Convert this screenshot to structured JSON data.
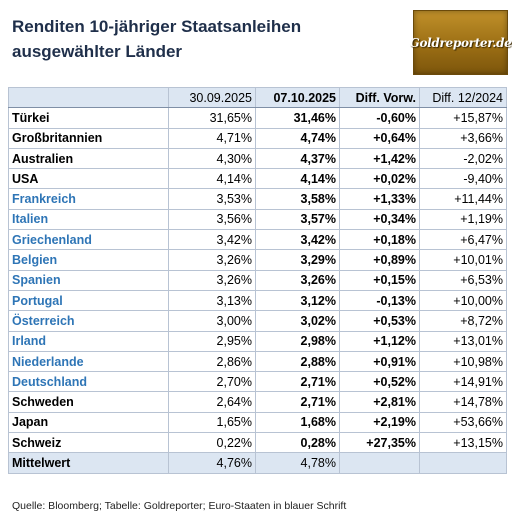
{
  "title_line1": "Renditen 10-jähriger Staatsanleihen",
  "title_line2": "ausgewählter Länder",
  "logo_text": "Goldreporter.de",
  "headers": {
    "col_date1": "30.09.2025",
    "col_date2": "07.10.2025",
    "col_diff_prev": "Diff. Vorw.",
    "col_diff_year": "Diff. 12/2024"
  },
  "rows": [
    {
      "country": "Türkei",
      "euro": false,
      "v1": "31,65%",
      "v2": "31,46%",
      "dprev": "-0,60%",
      "dyear": "+15,87%"
    },
    {
      "country": "Großbritannien",
      "euro": false,
      "v1": "4,71%",
      "v2": "4,74%",
      "dprev": "+0,64%",
      "dyear": "+3,66%"
    },
    {
      "country": "Australien",
      "euro": false,
      "v1": "4,30%",
      "v2": "4,37%",
      "dprev": "+1,42%",
      "dyear": "-2,02%"
    },
    {
      "country": "USA",
      "euro": false,
      "v1": "4,14%",
      "v2": "4,14%",
      "dprev": "+0,02%",
      "dyear": "-9,40%"
    },
    {
      "country": "Frankreich",
      "euro": true,
      "v1": "3,53%",
      "v2": "3,58%",
      "dprev": "+1,33%",
      "dyear": "+11,44%"
    },
    {
      "country": "Italien",
      "euro": true,
      "v1": "3,56%",
      "v2": "3,57%",
      "dprev": "+0,34%",
      "dyear": "+1,19%"
    },
    {
      "country": "Griechenland",
      "euro": true,
      "v1": "3,42%",
      "v2": "3,42%",
      "dprev": "+0,18%",
      "dyear": "+6,47%"
    },
    {
      "country": "Belgien",
      "euro": true,
      "v1": "3,26%",
      "v2": "3,29%",
      "dprev": "+0,89%",
      "dyear": "+10,01%"
    },
    {
      "country": "Spanien",
      "euro": true,
      "v1": "3,26%",
      "v2": "3,26%",
      "dprev": "+0,15%",
      "dyear": "+6,53%"
    },
    {
      "country": "Portugal",
      "euro": true,
      "v1": "3,13%",
      "v2": "3,12%",
      "dprev": "-0,13%",
      "dyear": "+10,00%"
    },
    {
      "country": "Österreich",
      "euro": true,
      "v1": "3,00%",
      "v2": "3,02%",
      "dprev": "+0,53%",
      "dyear": "+8,72%"
    },
    {
      "country": "Irland",
      "euro": true,
      "v1": "2,95%",
      "v2": "2,98%",
      "dprev": "+1,12%",
      "dyear": "+13,01%"
    },
    {
      "country": "Niederlande",
      "euro": true,
      "v1": "2,86%",
      "v2": "2,88%",
      "dprev": "+0,91%",
      "dyear": "+10,98%"
    },
    {
      "country": "Deutschland",
      "euro": true,
      "v1": "2,70%",
      "v2": "2,71%",
      "dprev": "+0,52%",
      "dyear": "+14,91%"
    },
    {
      "country": "Schweden",
      "euro": false,
      "v1": "2,64%",
      "v2": "2,71%",
      "dprev": "+2,81%",
      "dyear": "+14,78%"
    },
    {
      "country": "Japan",
      "euro": false,
      "v1": "1,65%",
      "v2": "1,68%",
      "dprev": "+2,19%",
      "dyear": "+53,66%"
    },
    {
      "country": "Schweiz",
      "euro": false,
      "v1": "0,22%",
      "v2": "0,28%",
      "dprev": "+27,35%",
      "dyear": "+13,15%"
    }
  ],
  "mean": {
    "label": "Mittelwert",
    "v1": "4,76%",
    "v2": "4,78%"
  },
  "source": "Quelle: Bloomberg; Tabelle: Goldreporter; Euro-Staaten in blauer Schrift",
  "colors": {
    "euro_text": "#2e75b6",
    "header_bg": "#dce6f2",
    "title": "#1f2f4a",
    "logo": "#9b6e14"
  }
}
